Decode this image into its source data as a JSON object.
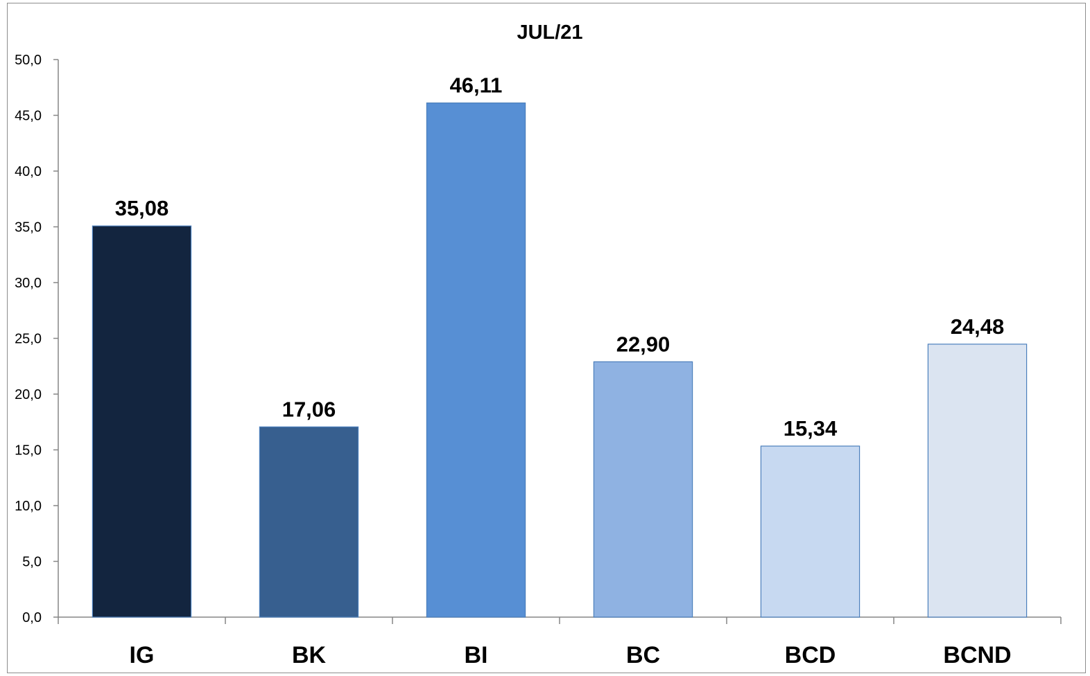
{
  "chart_data": {
    "type": "bar",
    "title": "JUL/21",
    "xlabel": "",
    "ylabel": "",
    "categories": [
      "IG",
      "BK",
      "BI",
      "BC",
      "BCD",
      "BCND"
    ],
    "values": [
      35.08,
      17.06,
      46.11,
      22.9,
      15.34,
      24.48
    ],
    "data_labels": [
      "35,08",
      "17,06",
      "46,11",
      "22,90",
      "15,34",
      "24,48"
    ],
    "bar_colors": [
      "#13253f",
      "#375f8f",
      "#578fd4",
      "#8fb2e2",
      "#c7d9f1",
      "#dbe4f1"
    ],
    "bar_edge_color": "#4a7ebb",
    "ylim": [
      0,
      50
    ],
    "y_ticks": [
      0,
      5,
      10,
      15,
      20,
      25,
      30,
      35,
      40,
      45,
      50
    ],
    "y_tick_labels": [
      "0,0",
      "5,0",
      "10,0",
      "15,0",
      "20,0",
      "25,0",
      "30,0",
      "35,0",
      "40,0",
      "45,0",
      "50,0"
    ],
    "grid": false,
    "legend": "none"
  }
}
